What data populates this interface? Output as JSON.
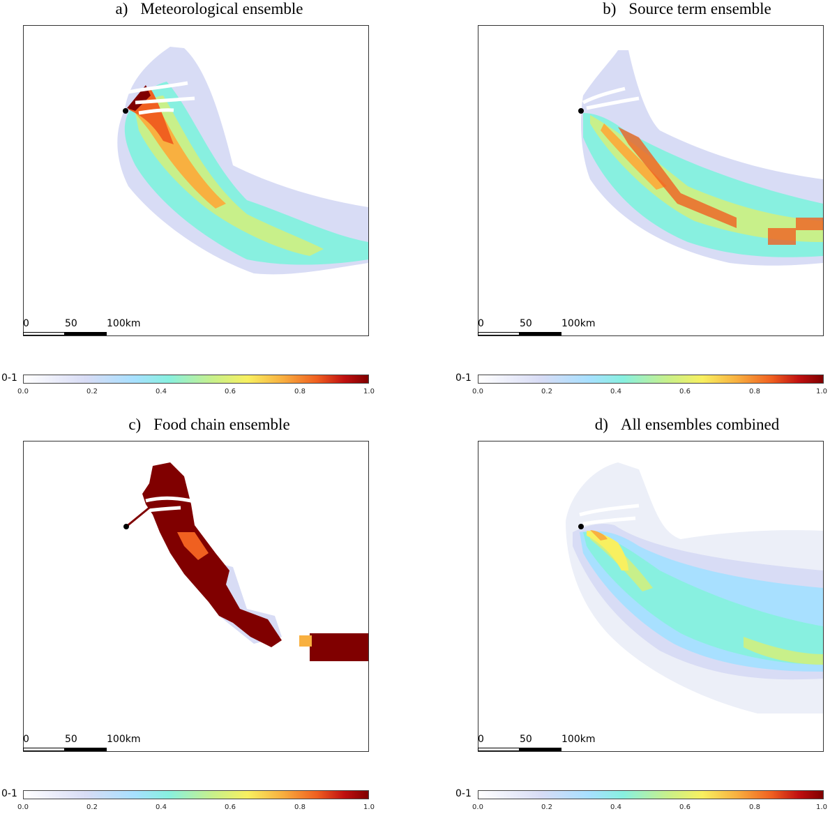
{
  "panels": [
    {
      "label": "a)",
      "title": "Meteorological ensemble"
    },
    {
      "label": "b)",
      "title": "Source term ensemble"
    },
    {
      "label": "c)",
      "title": "Food chain ensemble"
    },
    {
      "label": "d)",
      "title": "All ensembles combined"
    }
  ],
  "scale": {
    "zero": "0",
    "mid": "50",
    "end": "100km"
  },
  "colorbar": {
    "prefix": "0-1",
    "ticks": [
      "0.0",
      "0.2",
      "0.4",
      "0.6",
      "0.8",
      "1.0"
    ],
    "colors": [
      "#ffffff",
      "#d8dcf5",
      "#a8e0ff",
      "#88f0e0",
      "#c8f08a",
      "#f8f060",
      "#f8b040",
      "#f06020",
      "#c01010",
      "#800000"
    ]
  }
}
